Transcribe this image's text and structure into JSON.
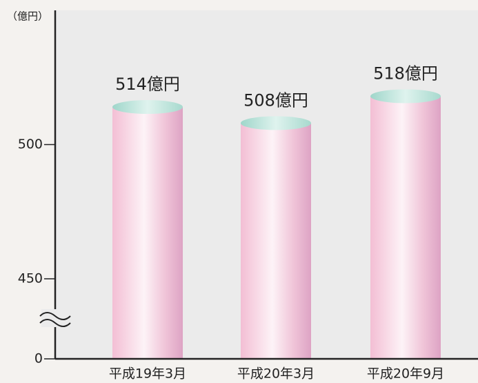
{
  "chart_data": {
    "type": "bar",
    "y_axis_label": "（億円）",
    "categories": [
      "平成19年3月",
      "平成20年3月",
      "平成20年9月"
    ],
    "values": [
      514,
      508,
      518
    ],
    "value_labels": [
      "514億円",
      "508億円",
      "518億円"
    ],
    "color": "#f2bcd3",
    "ylim": [
      0,
      550
    ],
    "axis_break": [
      0,
      450
    ],
    "yticks": [
      0,
      450,
      500
    ]
  }
}
